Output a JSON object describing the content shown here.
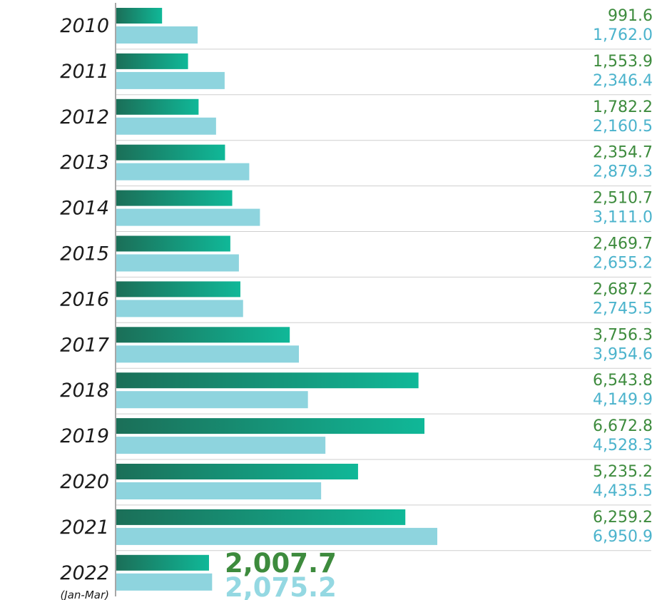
{
  "colors": {
    "series_a_start": "#1b6f58",
    "series_a_end": "#10b898",
    "series_b": "#8ed4de",
    "series_a_text": "#3d8b3d",
    "series_b_text": "#4bb3cc",
    "separator": "#cfcfcf",
    "axis": "#8a8a8a"
  },
  "chart_data": {
    "type": "bar",
    "orientation": "horizontal",
    "categories": [
      "2010",
      "2011",
      "2012",
      "2013",
      "2014",
      "2015",
      "2016",
      "2017",
      "2018",
      "2019",
      "2020",
      "2021",
      "2022"
    ],
    "category_sublabels": [
      "",
      "",
      "",
      "",
      "",
      "",
      "",
      "",
      "",
      "",
      "",
      "",
      "(Jan-Mar)"
    ],
    "series": [
      {
        "values": [
          991.6,
          1553.9,
          1782.2,
          2354.7,
          2510.7,
          2469.7,
          2687.2,
          3756.3,
          6543.8,
          6672.8,
          5235.2,
          6259.2,
          2007.7
        ],
        "labels": [
          "991.6",
          "1,553.9",
          "1,782.2",
          "2,354.7",
          "2,510.7",
          "2,469.7",
          "2,687.2",
          "3,756.3",
          "6,543.8",
          "6,672.8",
          "5,235.2",
          "6,259.2",
          "2,007.7"
        ]
      },
      {
        "values": [
          1762.0,
          2346.4,
          2160.5,
          2879.3,
          3111.0,
          2655.2,
          2745.5,
          3954.6,
          4149.9,
          4528.3,
          4435.5,
          6950.9,
          2075.2
        ],
        "labels": [
          "1,762.0",
          "2,346.4",
          "2,160.5",
          "2,879.3",
          "3,111.0",
          "2,655.2",
          "2,745.5",
          "3,954.6",
          "4,149.9",
          "4,528.3",
          "4,435.5",
          "6,950.9",
          "2,075.2"
        ]
      }
    ],
    "xlim": [
      0,
      6950.9
    ],
    "grid": false,
    "legend": "none"
  }
}
